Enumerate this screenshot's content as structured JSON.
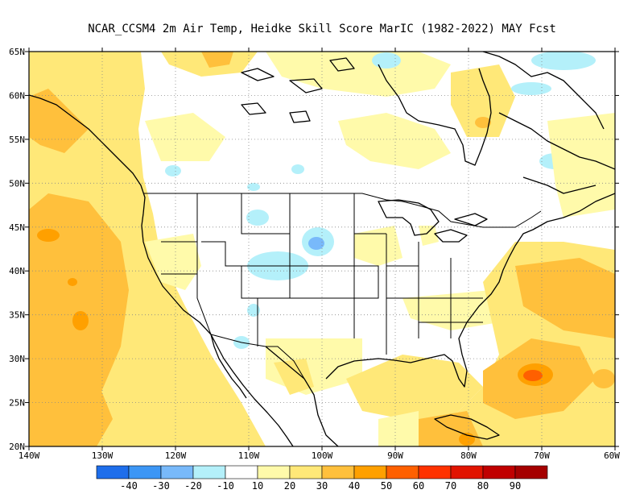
{
  "title": "NCAR_CCSM4  2m Air Temp, Heidke Skill Score MarIC (1982-2022) MAY Fcst",
  "map": {
    "lat_labels": [
      "65N",
      "60N",
      "55N",
      "50N",
      "45N",
      "40N",
      "35N",
      "30N",
      "25N",
      "20N"
    ],
    "lon_labels": [
      "140W",
      "130W",
      "120W",
      "110W",
      "100W",
      "90W",
      "80W",
      "70W",
      "60W"
    ],
    "lat_range": [
      20,
      65
    ],
    "lon_range": [
      -140,
      -60
    ],
    "grid_lines": "dotted"
  },
  "colorbar": {
    "colors": [
      "#1e6eeb",
      "#3c96f5",
      "#78b9fa",
      "#b4f0fa",
      "#ffffff",
      "#fffaaa",
      "#ffe878",
      "#ffc03c",
      "#ffa000",
      "#ff6000",
      "#ff3200",
      "#e11400",
      "#c00000",
      "#a50000"
    ],
    "labels": [
      "-40",
      "-30",
      "-20",
      "-10",
      "10",
      "20",
      "30",
      "40",
      "50",
      "60",
      "70",
      "80",
      "90"
    ]
  }
}
